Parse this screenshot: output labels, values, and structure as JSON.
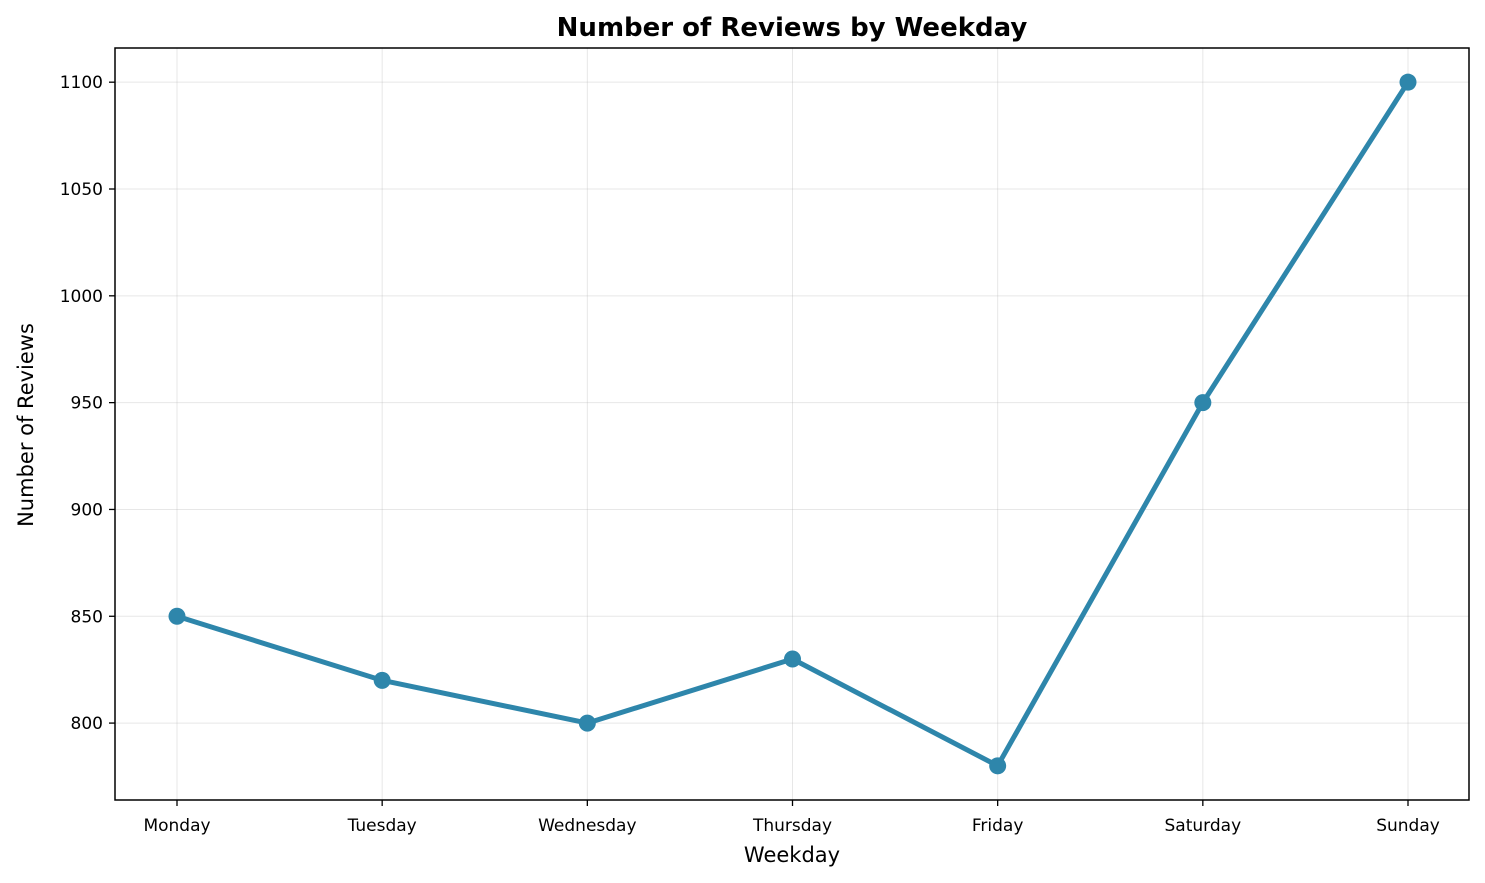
{
  "chart_data": {
    "type": "line",
    "title": "Number of Reviews by Weekday",
    "xlabel": "Weekday",
    "ylabel": "Number of Reviews",
    "categories": [
      "Monday",
      "Tuesday",
      "Wednesday",
      "Thursday",
      "Friday",
      "Saturday",
      "Sunday"
    ],
    "values": [
      850,
      820,
      800,
      830,
      780,
      950,
      1100
    ],
    "ylim": [
      764,
      1116
    ],
    "yticks": [
      800,
      850,
      900,
      950,
      1000,
      1050,
      1100
    ],
    "ytick_labels": [
      "800",
      "850",
      "900",
      "950",
      "1000",
      "1050",
      "1100"
    ],
    "grid": true,
    "line_color": "#2e86ab"
  }
}
